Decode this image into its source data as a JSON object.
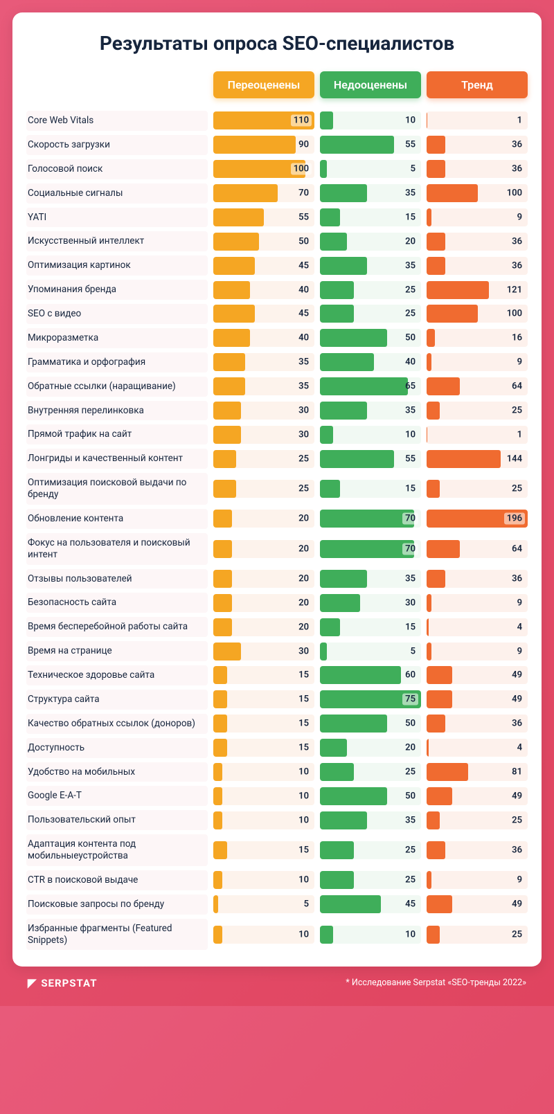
{
  "title": "Результаты опроса SEO-специалистов",
  "columns": [
    {
      "label": "Переоценены",
      "color": "#f5a623",
      "bg": "#fdf3ec",
      "max": 110
    },
    {
      "label": "Недооценены",
      "color": "#3fae5a",
      "bg": "#f1f9f3",
      "max": 75
    },
    {
      "label": "Тренд",
      "color": "#f06b30",
      "bg": "#fdf1ec",
      "max": 196
    }
  ],
  "label_bg": "#fdf6f7",
  "page_bg_from": "#e85a7a",
  "page_bg_to": "#e0445f",
  "card_bg": "#ffffff",
  "text_color": "#16253d",
  "title_fontsize": 28,
  "label_fontsize": 13.5,
  "value_fontsize": 13,
  "header_fontsize": 16,
  "rows": [
    {
      "label": "Core Web Vitals",
      "values": [
        110,
        10,
        1
      ]
    },
    {
      "label": "Скорость загрузки",
      "values": [
        90,
        55,
        36
      ]
    },
    {
      "label": "Голосовой поиск",
      "values": [
        100,
        5,
        36
      ]
    },
    {
      "label": "Социальные сигналы",
      "values": [
        70,
        35,
        100
      ]
    },
    {
      "label": "YATI",
      "values": [
        55,
        15,
        9
      ]
    },
    {
      "label": "Искусственный интеллект",
      "values": [
        50,
        20,
        36
      ]
    },
    {
      "label": "Оптимизация картинок",
      "values": [
        45,
        35,
        36
      ]
    },
    {
      "label": "Упоминания бренда",
      "values": [
        40,
        25,
        121
      ]
    },
    {
      "label": "SEO с видео",
      "values": [
        45,
        25,
        100
      ]
    },
    {
      "label": "Микроразметка",
      "values": [
        40,
        50,
        16
      ]
    },
    {
      "label": "Грамматика и орфография",
      "values": [
        35,
        40,
        9
      ]
    },
    {
      "label": "Обратные ссылки (наращивание)",
      "values": [
        35,
        65,
        64
      ]
    },
    {
      "label": "Внутренняя перелинковка",
      "values": [
        30,
        35,
        25
      ]
    },
    {
      "label": "Прямой трафик на сайт",
      "values": [
        30,
        10,
        1
      ]
    },
    {
      "label": "Лонгриды и качественный контент",
      "values": [
        25,
        55,
        144
      ]
    },
    {
      "label": "Оптимизация поисковой выдачи по бренду",
      "values": [
        25,
        15,
        25
      ]
    },
    {
      "label": "Обновление контента",
      "values": [
        20,
        70,
        196
      ]
    },
    {
      "label": "Фокус на пользователя и поисковый интент",
      "values": [
        20,
        70,
        64
      ]
    },
    {
      "label": "Отзывы пользователей",
      "values": [
        20,
        35,
        36
      ]
    },
    {
      "label": "Безопасность сайта",
      "values": [
        20,
        30,
        9
      ]
    },
    {
      "label": "Время бесперебойной работы сайта",
      "values": [
        20,
        15,
        4
      ]
    },
    {
      "label": "Время на странице",
      "values": [
        30,
        5,
        9
      ]
    },
    {
      "label": "Техническое здоровье сайта",
      "values": [
        15,
        60,
        49
      ]
    },
    {
      "label": "Структура сайта",
      "values": [
        15,
        75,
        49
      ]
    },
    {
      "label": "Качество обратных ссылок (доноров)",
      "values": [
        15,
        50,
        36
      ]
    },
    {
      "label": "Доступность",
      "values": [
        15,
        20,
        4
      ]
    },
    {
      "label": "Удобство на мобильных",
      "values": [
        10,
        25,
        81
      ]
    },
    {
      "label": "Google E-A-T",
      "values": [
        10,
        50,
        49
      ]
    },
    {
      "label": "Пользовательский опыт",
      "values": [
        10,
        35,
        25
      ]
    },
    {
      "label": "Адаптация контента под мобильныеустройства",
      "values": [
        15,
        25,
        36
      ]
    },
    {
      "label": "CTR в поисковой выдаче",
      "values": [
        10,
        25,
        9
      ]
    },
    {
      "label": "Поисковые запросы по бренду",
      "values": [
        5,
        45,
        49
      ]
    },
    {
      "label": "Избранные фрагменты (Featured Snippets)",
      "values": [
        10,
        10,
        25
      ]
    }
  ],
  "logo_text": "SERPSTAT",
  "footnote": "* Исследование Serpstat «SEO-тренды 2022»"
}
